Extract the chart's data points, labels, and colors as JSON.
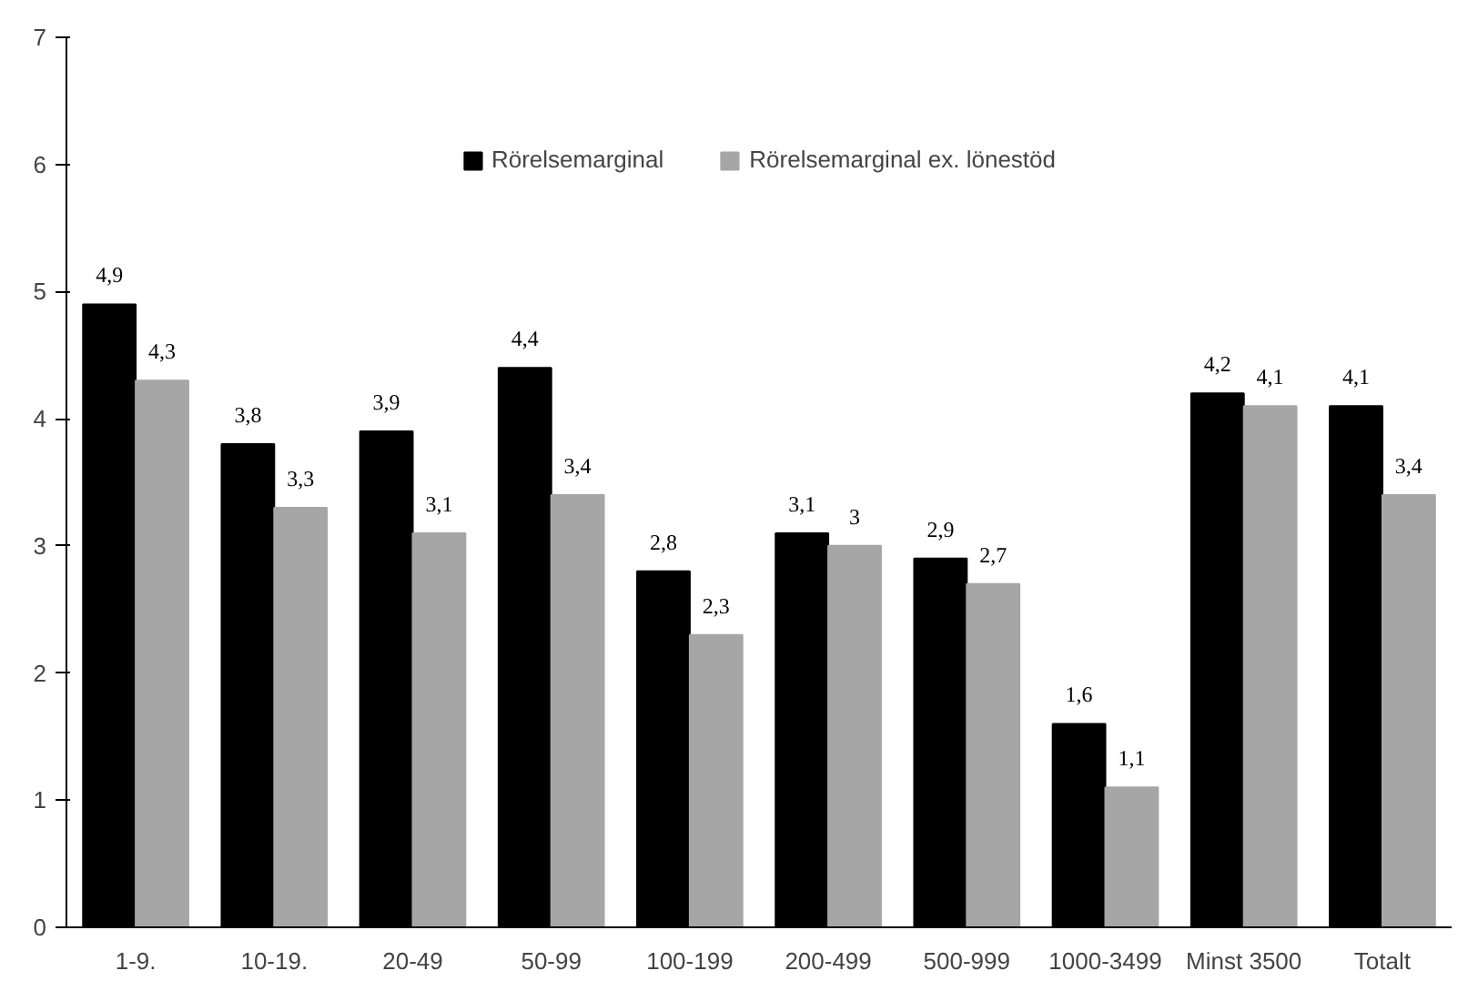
{
  "chart_data": {
    "type": "bar",
    "categories": [
      "1-9.",
      "10-19.",
      "20-49",
      "50-99",
      "100-199",
      "200-499",
      "500-999",
      "1000-3499",
      "Minst 3500",
      "Totalt"
    ],
    "series": [
      {
        "name": "Rörelsemarginal",
        "color": "#000000",
        "values": [
          4.9,
          3.8,
          3.9,
          4.4,
          2.8,
          3.1,
          2.9,
          1.6,
          4.2,
          4.1
        ],
        "value_labels": [
          "4,9",
          "3,8",
          "3,9",
          "4,4",
          "2,8",
          "3,1",
          "2,9",
          "1,6",
          "4,2",
          "4,1"
        ]
      },
      {
        "name": "Rörelsemarginal ex. lönestöd",
        "color": "#a6a6a6",
        "values": [
          4.3,
          3.3,
          3.1,
          3.4,
          2.3,
          3.0,
          2.7,
          1.1,
          4.1,
          3.4
        ],
        "value_labels": [
          "4,3",
          "3,3",
          "3,1",
          "3,4",
          "2,3",
          "3",
          "2,7",
          "1,1",
          "4,1",
          "3,4"
        ]
      }
    ],
    "ylim": [
      0,
      7
    ],
    "yticks": [
      0,
      1,
      2,
      3,
      4,
      5,
      6,
      7
    ],
    "grid": false,
    "legend": "top"
  }
}
